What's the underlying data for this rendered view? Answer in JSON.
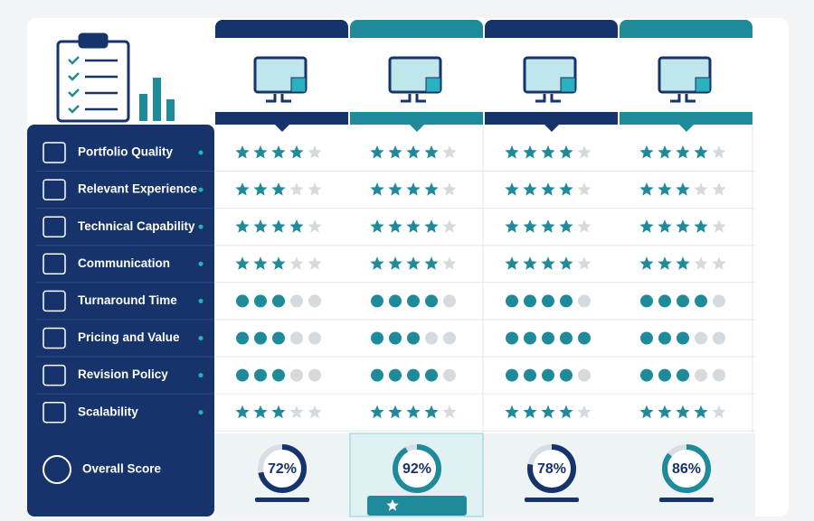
{
  "overall_label": "Overall Score",
  "rating_max": 5,
  "criteria": [
    {
      "label": "Portfolio Quality",
      "marker": "star"
    },
    {
      "label": "Relevant Experience",
      "marker": "star"
    },
    {
      "label": "Technical Capability",
      "marker": "star"
    },
    {
      "label": "Communication",
      "marker": "star"
    },
    {
      "label": "Turnaround Time",
      "marker": "dot"
    },
    {
      "label": "Pricing and Value",
      "marker": "dot"
    },
    {
      "label": "Revision Policy",
      "marker": "dot"
    },
    {
      "label": "Scalability",
      "marker": "star"
    }
  ],
  "vendors": [
    {
      "color": "#16336b",
      "ratings": [
        4,
        3,
        4,
        3,
        3,
        3,
        3,
        3
      ],
      "score": {
        "value": 72,
        "label": "72%"
      }
    },
    {
      "color": "#1f8a9a",
      "ratings": [
        4,
        4,
        4,
        4,
        4,
        3,
        4,
        4
      ],
      "score": {
        "value": 92,
        "label": "92%"
      }
    },
    {
      "color": "#16336b",
      "ratings": [
        4,
        4,
        4,
        4,
        4,
        5,
        4,
        4
      ],
      "score": {
        "value": 78,
        "label": "78%"
      }
    },
    {
      "color": "#1f8a9a",
      "ratings": [
        4,
        3,
        4,
        3,
        4,
        3,
        3,
        4
      ],
      "score": {
        "value": 86,
        "label": "86%"
      }
    }
  ]
}
